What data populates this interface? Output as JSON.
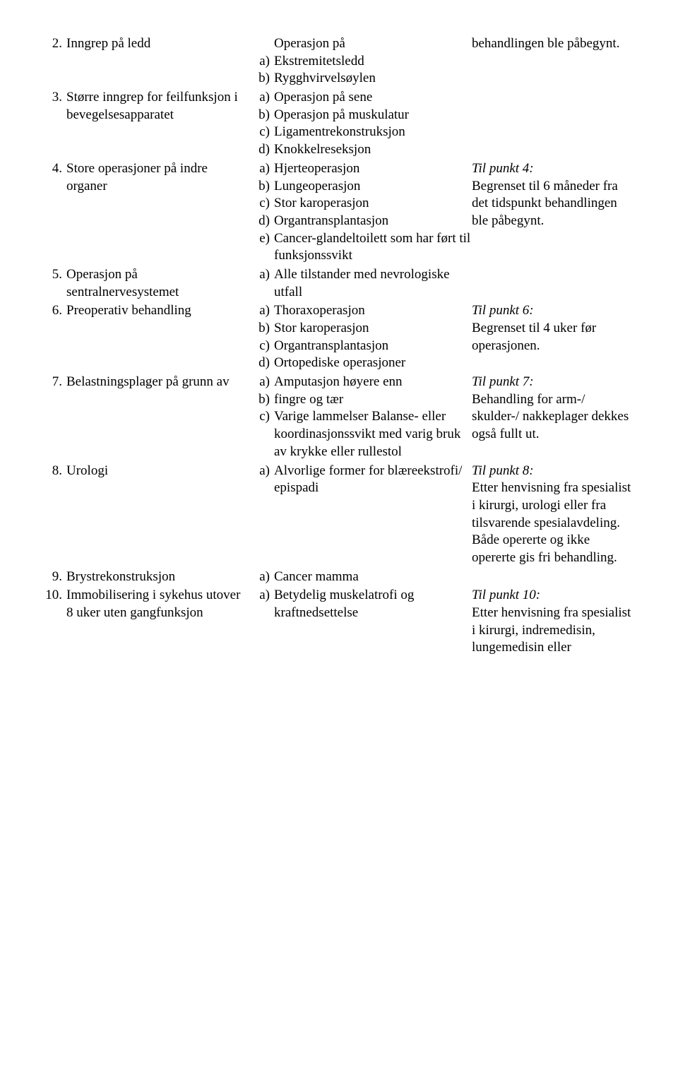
{
  "rows": [
    {
      "num": "2.",
      "left": "Inngrep på ledd",
      "mid": [
        {
          "l": "",
          "t": "Operasjon på"
        },
        {
          "l": "a)",
          "t": "Ekstremitetsledd"
        },
        {
          "l": "b)",
          "t": "Rygghvirvelsøylen"
        }
      ],
      "right": "behandlingen ble påbegynt."
    },
    {
      "num": "3.",
      "left": "Større inngrep for feilfunksjon i bevegelsesapparatet",
      "mid": [
        {
          "l": "a)",
          "t": "Operasjon på sene"
        },
        {
          "l": "b)",
          "t": "Operasjon på muskulatur"
        },
        {
          "l": "c)",
          "t": "Ligamentrekonstruksjon"
        },
        {
          "l": "d)",
          "t": "Knokkelreseksjon"
        }
      ],
      "right": ""
    },
    {
      "num": "4.",
      "left": "Store operasjoner på indre organer",
      "mid": [
        {
          "l": "a)",
          "t": "Hjerteoperasjon"
        },
        {
          "l": "b)",
          "t": "Lungeoperasjon"
        },
        {
          "l": "c)",
          "t": "Stor karoperasjon"
        },
        {
          "l": "d)",
          "t": "Organtransplantasjon"
        },
        {
          "l": "e)",
          "t": "Cancer-glandeltoilett som har ført til funksjonssvikt"
        }
      ],
      "right_it": "Til punkt 4:",
      "right": "Begrenset til 6 måneder fra det tidspunkt behandlingen ble påbegynt."
    },
    {
      "num": "5.",
      "left": "Operasjon på sentralnervesystemet",
      "mid": [
        {
          "l": "a)",
          "t": "Alle tilstander med nevrologiske utfall"
        }
      ],
      "right": ""
    },
    {
      "num": "6.",
      "left": "Preoperativ behandling",
      "mid": [
        {
          "l": "a)",
          "t": "Thoraxoperasjon"
        },
        {
          "l": "b)",
          "t": "Stor karoperasjon"
        },
        {
          "l": "c)",
          "t": "Organtransplantasjon"
        },
        {
          "l": "d)",
          "t": "Ortopediske operasjoner"
        }
      ],
      "right_it": "Til punkt 6:",
      "right": "Begrenset til 4 uker før operasjonen."
    },
    {
      "num": "7.",
      "left": "Belastningsplager på grunn av",
      "mid": [
        {
          "l": "a)",
          "t": "Amputasjon høyere enn"
        },
        {
          "l": "b)",
          "t": "fingre og tær"
        },
        {
          "l": "c)",
          "t": "Varige lammelser Balanse- eller koordinasjonssvikt med varig bruk av krykke eller rullestol"
        }
      ],
      "right_it": "Til punkt 7:",
      "right": "Behandling for arm-/ skulder-/ nakkeplager dekkes også fullt ut."
    },
    {
      "num": "8.",
      "left": "Urologi",
      "mid": [
        {
          "l": "a)",
          "t": "Alvorlige former for blæreekstrofi/ epispadi"
        }
      ],
      "right_it": "Til punkt 8:",
      "right": "Etter henvisning fra spesialist i kirurgi, urologi eller fra tilsvarende spesialavdeling. Både opererte og ikke opererte gis fri behandling."
    },
    {
      "num": "9.",
      "left": "Brystrekonstruksjon",
      "mid": [
        {
          "l": "a)",
          "t": "Cancer mamma"
        }
      ],
      "right": ""
    },
    {
      "num": "10.",
      "left": "Immobilisering i sykehus utover 8 uker uten gangfunksjon",
      "mid": [
        {
          "l": "a)",
          "t": "Betydelig muskelatrofi og kraftnedsettelse"
        }
      ],
      "right_it": "Til punkt 10:",
      "right": "Etter henvisning fra spesialist i kirurgi, indremedisin, lungemedisin eller"
    }
  ]
}
